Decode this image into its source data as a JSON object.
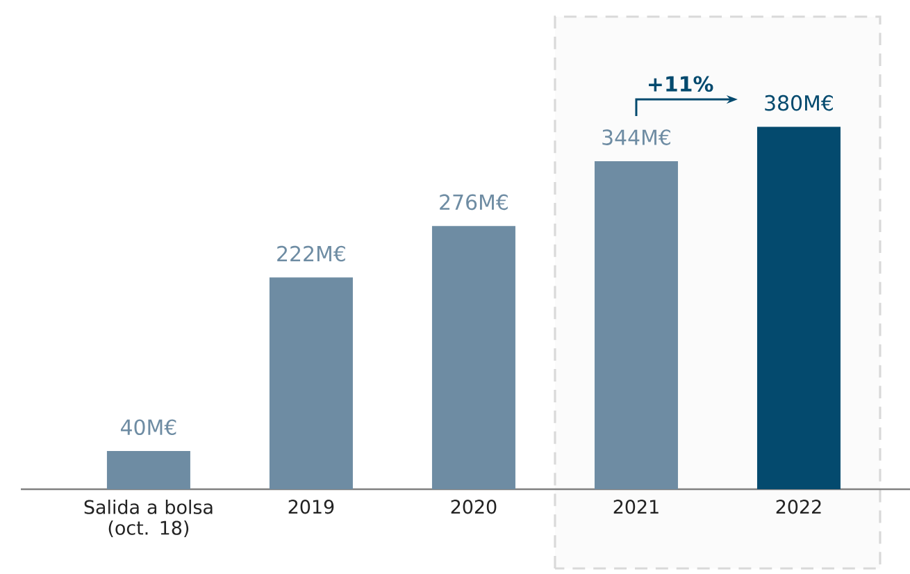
{
  "chart_data": {
    "type": "bar",
    "categories": [
      "Salida a bolsa (oct. 18)",
      "2019",
      "2020",
      "2021",
      "2022"
    ],
    "values": [
      40,
      222,
      276,
      344,
      380
    ],
    "colors": [
      "#6e8ca3",
      "#6e8ca3",
      "#6e8ca3",
      "#6e8ca3",
      "#044a6e"
    ],
    "value_labels": [
      "40M€",
      "222M€",
      "276M€",
      "344M€",
      "380M€"
    ],
    "annotations": [
      "+11%"
    ],
    "bands": [
      {
        "axis": "x",
        "from": "2021",
        "to": "2022",
        "color": "#d9d9d9"
      }
    ]
  }
}
